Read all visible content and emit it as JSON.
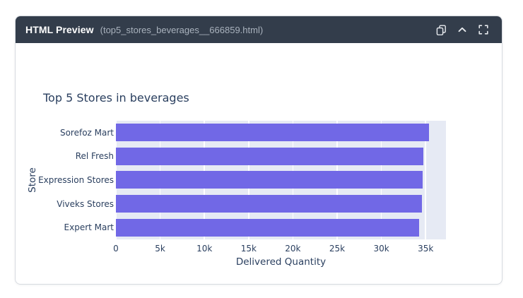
{
  "window": {
    "title": "HTML Preview",
    "filename": "(top5_stores_beverages__666859.html)",
    "toolbar_icons": [
      "copy-icon",
      "chevron-up-icon",
      "fullscreen-icon"
    ]
  },
  "chart_data": {
    "type": "bar",
    "orientation": "horizontal",
    "title": "Top 5 Stores in beverages",
    "xlabel": "Delivered Quantity",
    "ylabel": "Store",
    "categories": [
      "Sorefoz Mart",
      "Rel Fresh",
      "Expression Stores",
      "Viveks Stores",
      "Expert Mart"
    ],
    "values": [
      35400,
      34750,
      34700,
      34600,
      34250
    ],
    "xlim": [
      0,
      37300
    ],
    "xtick_values": [
      0,
      5000,
      10000,
      15000,
      20000,
      25000,
      30000,
      35000
    ],
    "xtick_labels": [
      "0",
      "5k",
      "10k",
      "15k",
      "20k",
      "25k",
      "30k",
      "35k"
    ],
    "legend": false,
    "grid": true,
    "colors": {
      "bar": "#7168e6",
      "plot_background": "#e6eaf4",
      "grid": "#ffffff",
      "text": "#2a3f5f"
    }
  }
}
